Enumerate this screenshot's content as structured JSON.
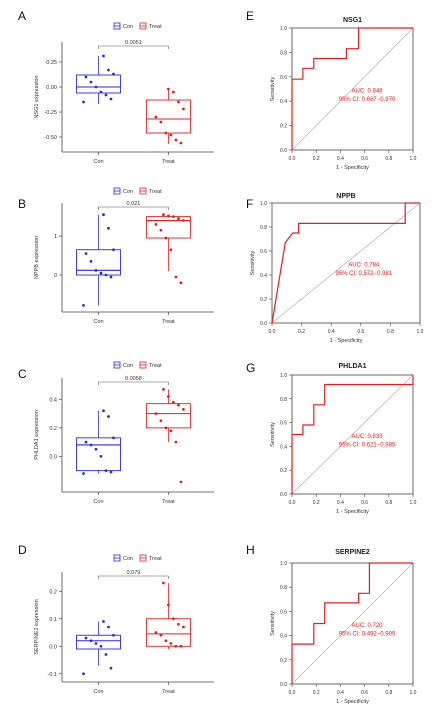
{
  "colors": {
    "con": "#2b2bd9",
    "treat": "#e02020",
    "roc": "#e02020",
    "diag": "#b0b0b0",
    "axis": "#444444"
  },
  "legend": {
    "con": "Con",
    "treat": "Treat"
  },
  "chart_data": [
    {
      "panel": "A",
      "type": "box",
      "ylabel": "NSG1 expression",
      "categories": [
        "Con",
        "Treat"
      ],
      "ylim": [
        -0.65,
        0.45
      ],
      "yticks": [
        -0.5,
        -0.25,
        0,
        0.25
      ],
      "ytick_labels": [
        "-0.50",
        "-0.25",
        "0.00",
        "0.25"
      ],
      "pvalue": "0.0051",
      "boxes": [
        {
          "q1": -0.06,
          "median": 0.0,
          "q3": 0.12,
          "min": -0.17,
          "max": 0.31
        },
        {
          "q1": -0.46,
          "median": -0.32,
          "q3": -0.13,
          "min": -0.57,
          "max": -0.02
        }
      ],
      "points": [
        [
          -0.15,
          -0.12,
          -0.08,
          -0.05,
          0.0,
          0.05,
          0.1,
          0.13,
          0.17,
          0.31
        ],
        [
          -0.56,
          -0.53,
          -0.48,
          -0.46,
          -0.35,
          -0.3,
          -0.22,
          -0.15,
          -0.05,
          -0.02
        ]
      ]
    },
    {
      "panel": "B",
      "type": "box",
      "ylabel": "NPPB expression",
      "categories": [
        "Con",
        "Treat"
      ],
      "ylim": [
        -0.95,
        1.85
      ],
      "yticks": [
        0,
        1
      ],
      "ytick_labels": [
        "0",
        "1"
      ],
      "pvalue": "0.021",
      "boxes": [
        {
          "q1": 0.0,
          "median": 0.12,
          "q3": 0.65,
          "min": -0.78,
          "max": 1.55
        },
        {
          "q1": 0.95,
          "median": 1.4,
          "q3": 1.5,
          "min": 0.1,
          "max": 1.55
        }
      ],
      "points": [
        [
          -0.78,
          -0.05,
          0.0,
          0.05,
          0.12,
          0.35,
          0.55,
          0.65,
          1.2,
          1.55
        ],
        [
          -0.2,
          -0.05,
          0.65,
          0.95,
          1.15,
          1.3,
          1.4,
          1.45,
          1.5,
          1.52,
          1.55
        ]
      ]
    },
    {
      "panel": "C",
      "type": "box",
      "ylabel": "PHLDA1 expression",
      "categories": [
        "Con",
        "Treat"
      ],
      "ylim": [
        -0.25,
        0.55
      ],
      "yticks": [
        0,
        0.2,
        0.4
      ],
      "ytick_labels": [
        "0.0",
        "0.2",
        "0.4"
      ],
      "pvalue": "0.0058",
      "boxes": [
        {
          "q1": -0.1,
          "median": 0.08,
          "q3": 0.13,
          "min": -0.12,
          "max": 0.32
        },
        {
          "q1": 0.2,
          "median": 0.3,
          "q3": 0.37,
          "min": 0.1,
          "max": 0.47
        }
      ],
      "points": [
        [
          -0.12,
          -0.11,
          -0.1,
          0.0,
          0.05,
          0.08,
          0.1,
          0.13,
          0.28,
          0.32
        ],
        [
          -0.18,
          0.1,
          0.18,
          0.2,
          0.25,
          0.3,
          0.33,
          0.36,
          0.38,
          0.42,
          0.47
        ]
      ]
    },
    {
      "panel": "D",
      "type": "box",
      "ylabel": "SERPINE2 expression",
      "categories": [
        "Con",
        "Treat"
      ],
      "ylim": [
        -0.13,
        0.27
      ],
      "yticks": [
        -0.1,
        0,
        0.1,
        0.2
      ],
      "ytick_labels": [
        "-0.1",
        "0.0",
        "0.1",
        "0.2"
      ],
      "pvalue": "0.079",
      "boxes": [
        {
          "q1": -0.01,
          "median": 0.02,
          "q3": 0.04,
          "min": -0.07,
          "max": 0.09
        },
        {
          "q1": 0.0,
          "median": 0.045,
          "q3": 0.1,
          "min": -0.01,
          "max": 0.23
        }
      ],
      "points": [
        [
          -0.1,
          -0.08,
          -0.03,
          0.0,
          0.01,
          0.02,
          0.03,
          0.04,
          0.07,
          0.09
        ],
        [
          0.0,
          0.0,
          0.01,
          0.02,
          0.04,
          0.05,
          0.07,
          0.08,
          0.1,
          0.15,
          0.23
        ]
      ]
    },
    {
      "panel": "E",
      "type": "line",
      "title": "NSG1",
      "xlabel": "1 - Specificity",
      "ylabel": "Sensitivity",
      "xlim": [
        0,
        1
      ],
      "ylim": [
        0,
        1
      ],
      "ticks": [
        0,
        0.2,
        0.4,
        0.6,
        0.8,
        1.0
      ],
      "tick_labels": [
        "0.0",
        "0.2",
        "0.4",
        "0.6",
        "0.8",
        "1.0"
      ],
      "auc": "AUC: 0.848",
      "ci": "95% CI: 0.667−0.970",
      "roc": [
        [
          0,
          0
        ],
        [
          0,
          0.58
        ],
        [
          0.09,
          0.58
        ],
        [
          0.09,
          0.67
        ],
        [
          0.18,
          0.67
        ],
        [
          0.18,
          0.75
        ],
        [
          0.45,
          0.75
        ],
        [
          0.45,
          0.83
        ],
        [
          0.55,
          0.83
        ],
        [
          0.55,
          1.0
        ],
        [
          1.0,
          1.0
        ]
      ]
    },
    {
      "panel": "F",
      "type": "line",
      "title": "NPPB",
      "xlabel": "1 - Specificity",
      "ylabel": "Sensitivity",
      "xlim": [
        0,
        1
      ],
      "ylim": [
        0,
        1
      ],
      "ticks": [
        0,
        0.2,
        0.4,
        0.6,
        0.8,
        1.0
      ],
      "tick_labels": [
        "0.0",
        "0.2",
        "0.4",
        "0.6",
        "0.8",
        "1.0"
      ],
      "auc": "AUC: 0.784",
      "ci": "95% CI: 0.572−0.981",
      "roc": [
        [
          0,
          0
        ],
        [
          0.09,
          0.67
        ],
        [
          0.14,
          0.75
        ],
        [
          0.18,
          0.75
        ],
        [
          0.18,
          0.83
        ],
        [
          0.9,
          0.83
        ],
        [
          0.9,
          1.0
        ],
        [
          1.0,
          1.0
        ]
      ]
    },
    {
      "panel": "G",
      "type": "line",
      "title": "PHLDA1",
      "xlabel": "1 - Specificity",
      "ylabel": "Sensitivity",
      "xlim": [
        0,
        1
      ],
      "ylim": [
        0,
        1
      ],
      "ticks": [
        0,
        0.2,
        0.4,
        0.6,
        0.8,
        1.0
      ],
      "tick_labels": [
        "0.0",
        "0.2",
        "0.4",
        "0.6",
        "0.8",
        "1.0"
      ],
      "auc": "AUC: 0.833",
      "ci": "95% CI: 0.621−0.985",
      "roc": [
        [
          0,
          0
        ],
        [
          0,
          0.5
        ],
        [
          0.09,
          0.5
        ],
        [
          0.09,
          0.58
        ],
        [
          0.18,
          0.58
        ],
        [
          0.18,
          0.75
        ],
        [
          0.27,
          0.75
        ],
        [
          0.27,
          0.92
        ],
        [
          1.0,
          0.92
        ],
        [
          1.0,
          1.0
        ]
      ]
    },
    {
      "panel": "H",
      "type": "line",
      "title": "SERPINE2",
      "xlabel": "1 - Specificity",
      "ylabel": "Sensitivity",
      "xlim": [
        0,
        1
      ],
      "ylim": [
        0,
        1
      ],
      "ticks": [
        0,
        0.2,
        0.4,
        0.6,
        0.8,
        1.0
      ],
      "tick_labels": [
        "0.0",
        "0.2",
        "0.4",
        "0.6",
        "0.8",
        "1.0"
      ],
      "auc": "AUC: 0.720",
      "ci": "95% CI: 0.492−0.909",
      "roc": [
        [
          0,
          0
        ],
        [
          0,
          0.33
        ],
        [
          0.18,
          0.33
        ],
        [
          0.18,
          0.5
        ],
        [
          0.27,
          0.5
        ],
        [
          0.27,
          0.67
        ],
        [
          0.55,
          0.67
        ],
        [
          0.55,
          0.75
        ],
        [
          0.64,
          0.75
        ],
        [
          0.64,
          1.0
        ],
        [
          1.0,
          1.0
        ]
      ]
    }
  ]
}
